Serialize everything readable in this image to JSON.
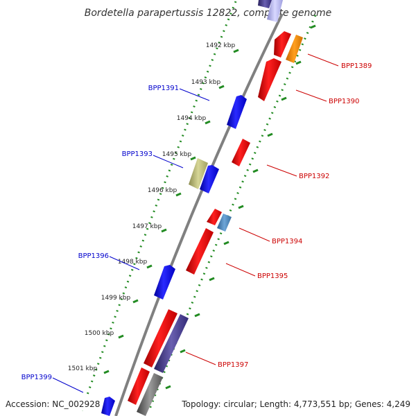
{
  "title": "Bordetella parapertussis 12822, complete genome",
  "accession": "Accession: NC_002928",
  "topology": "Topology: circular; Length: 4,773,551 bp; Genes: 4,249",
  "colors": {
    "forward": "#ff0000",
    "reverse": "#0000ff",
    "backbone": "#7a7a7a",
    "ticks": "#228b22",
    "label_forward": "#cc0000",
    "label_reverse": "#0000cc"
  },
  "ticks": [
    "1492 kbp",
    "1493 kbp",
    "1494 kbp",
    "1495 kbp",
    "1496 kbp",
    "1497 kbp",
    "1498 kbp",
    "1499 kbp",
    "1500 kbp",
    "1501 kbp"
  ],
  "gene_labels": [
    "BPP1389",
    "BPP1390",
    "BPP1391",
    "BPP1392",
    "BPP1393",
    "BPP1394",
    "BPP1395",
    "BPP1396",
    "BPP1397",
    "BPP1399"
  ]
}
